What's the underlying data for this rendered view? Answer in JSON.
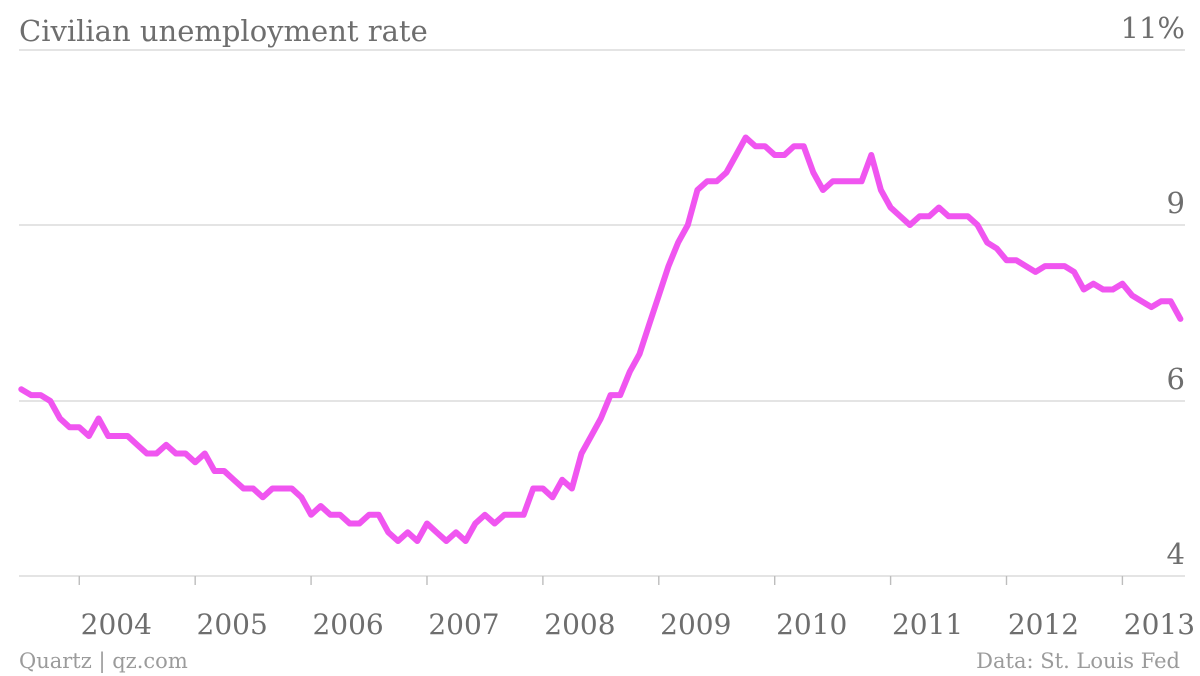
{
  "chart_data": {
    "type": "line",
    "title": "Civilian unemployment rate",
    "xlabel": "",
    "ylabel": "",
    "x_ticks": [
      {
        "value": 2004.0,
        "label": "2004"
      },
      {
        "value": 2005.0,
        "label": "2005"
      },
      {
        "value": 2006.0,
        "label": "2006"
      },
      {
        "value": 2007.0,
        "label": "2007"
      },
      {
        "value": 2008.0,
        "label": "2008"
      },
      {
        "value": 2009.0,
        "label": "2009"
      },
      {
        "value": 2010.0,
        "label": "2010"
      },
      {
        "value": 2011.0,
        "label": "2011"
      },
      {
        "value": 2012.0,
        "label": "2012"
      },
      {
        "value": 2013.0,
        "label": "2013"
      }
    ],
    "y_ticks": [
      {
        "value": 11,
        "label": "11%"
      },
      {
        "value": 9,
        "label": "9"
      },
      {
        "value": 6,
        "label": "6"
      },
      {
        "value": 4,
        "label": "4"
      }
    ],
    "xlim": [
      2003.48,
      2013.54
    ],
    "ylim": [
      4,
      11
    ],
    "grid": true,
    "color": "#f055f0",
    "series": [
      {
        "x_start": 2003.5,
        "x_step_months": 1,
        "values": [
          6.2,
          6.1,
          6.1,
          6.0,
          5.8,
          5.7,
          5.7,
          5.6,
          5.8,
          5.6,
          5.6,
          5.6,
          5.5,
          5.4,
          5.4,
          5.5,
          5.4,
          5.4,
          5.3,
          5.4,
          5.2,
          5.2,
          5.1,
          5.0,
          5.0,
          4.9,
          5.0,
          5.0,
          5.0,
          4.9,
          4.7,
          4.8,
          4.7,
          4.7,
          4.6,
          4.6,
          4.7,
          4.7,
          4.5,
          4.4,
          4.5,
          4.4,
          4.6,
          4.5,
          4.4,
          4.5,
          4.4,
          4.6,
          4.7,
          4.6,
          4.7,
          4.7,
          4.7,
          5.0,
          5.0,
          4.9,
          5.1,
          5.0,
          5.4,
          5.6,
          5.8,
          6.1,
          6.1,
          6.5,
          6.8,
          7.3,
          7.8,
          8.3,
          8.7,
          9.0,
          9.4,
          9.5,
          9.5,
          9.6,
          9.8,
          10.0,
          9.9,
          9.9,
          9.8,
          9.8,
          9.9,
          9.9,
          9.6,
          9.4,
          9.5,
          9.5,
          9.5,
          9.5,
          9.8,
          9.4,
          9.2,
          9.1,
          9.0,
          9.1,
          9.1,
          9.2,
          9.1,
          9.1,
          9.1,
          9.0,
          8.7,
          8.6,
          8.4,
          8.4,
          8.3,
          8.2,
          8.3,
          8.3,
          8.3,
          8.2,
          7.9,
          8.0,
          7.9,
          7.9,
          8.0,
          7.8,
          7.7,
          7.6,
          7.7,
          7.7,
          7.4
        ]
      }
    ]
  },
  "footer": {
    "source_left": "Quartz | qz.com",
    "source_right": "Data: St. Louis Fed"
  }
}
